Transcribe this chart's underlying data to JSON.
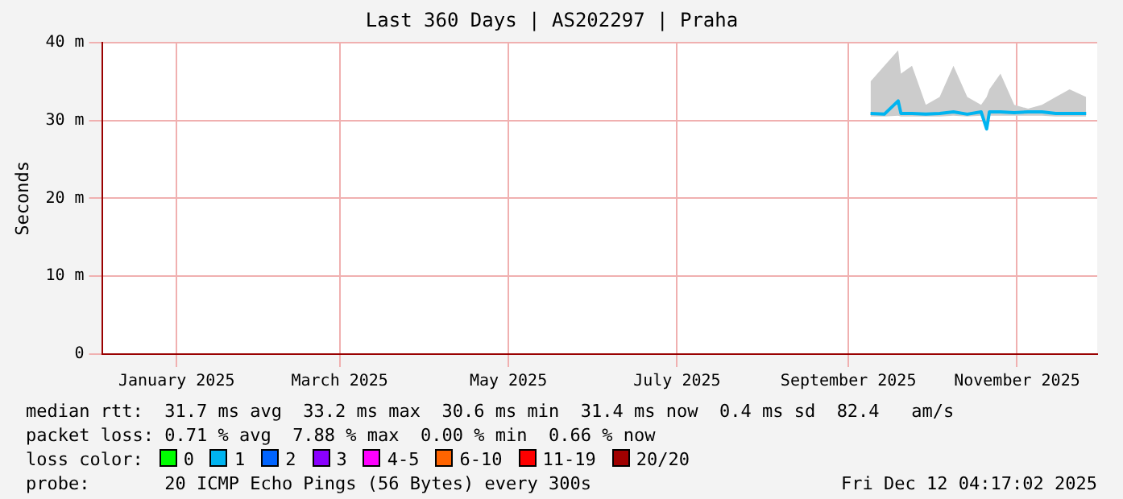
{
  "chart_data": {
    "type": "line",
    "title": "Last 360 Days | AS202297 | Praha",
    "ylabel": "Seconds",
    "x": [
      "2025-09-23",
      "2025-09-28",
      "2025-10-03",
      "2025-10-04",
      "2025-10-08",
      "2025-10-13",
      "2025-10-18",
      "2025-10-23",
      "2025-10-28",
      "2025-11-02",
      "2025-11-04",
      "2025-11-05",
      "2025-11-09",
      "2025-11-14",
      "2025-11-19",
      "2025-11-24",
      "2025-11-29",
      "2025-12-04",
      "2025-12-10"
    ],
    "series": [
      {
        "color": "#00b4f0",
        "values": [
          30.9,
          30.8,
          32.5,
          30.9,
          30.9,
          30.8,
          30.9,
          31.1,
          30.8,
          31.1,
          28.9,
          31.1,
          31.1,
          31,
          31.1,
          31.1,
          30.9,
          30.9,
          30.9
        ],
        "lower": [
          30.5,
          30.5,
          30.6,
          30.5,
          30.5,
          30.5,
          30.5,
          30.6,
          30.5,
          30.6,
          28.8,
          30.6,
          30.6,
          30.6,
          30.6,
          30.6,
          30.5,
          30.5,
          30.5
        ],
        "upper": [
          35,
          37,
          39,
          36,
          37,
          32,
          33,
          37,
          33,
          32,
          33,
          34,
          36,
          32,
          31.5,
          32,
          33,
          34,
          33
        ]
      }
    ],
    "xlim": [
      "2024-12-19",
      "2025-12-14"
    ],
    "xticks": [
      {
        "value": "2025-01-15",
        "label": "January 2025"
      },
      {
        "value": "2025-03-15",
        "label": "March 2025"
      },
      {
        "value": "2025-05-15",
        "label": "May 2025"
      },
      {
        "value": "2025-07-15",
        "label": "July 2025"
      },
      {
        "value": "2025-09-15",
        "label": "September 2025"
      },
      {
        "value": "2025-11-15",
        "label": "November 2025"
      }
    ],
    "ylim": [
      0,
      40
    ],
    "yticks": [
      0,
      {
        "value": 10,
        "label": "10 m"
      },
      {
        "value": 20,
        "label": "20 m"
      },
      {
        "value": 30,
        "label": "30 m"
      },
      {
        "value": 40,
        "label": "40 m"
      }
    ],
    "grid": true,
    "legend": false,
    "marker": "none",
    "line_style": "solid",
    "annotations": [
      "median rtt:  31.7 ms avg  33.2 ms max  30.6 ms min  31.4 ms now  0.4 ms sd  82.4   am/s",
      "packet loss: 0.71 % avg  7.88 % max  0.00 % min  0.66 % now",
      "loss color:",
      "0",
      "1",
      "2",
      "3",
      "4-5",
      "6-10",
      "11-19",
      "20/20",
      "probe:       20 ICMP Echo Pings (56 Bytes) every 300s",
      "Fri Dec 12 04:17:02 2025"
    ]
  }
}
